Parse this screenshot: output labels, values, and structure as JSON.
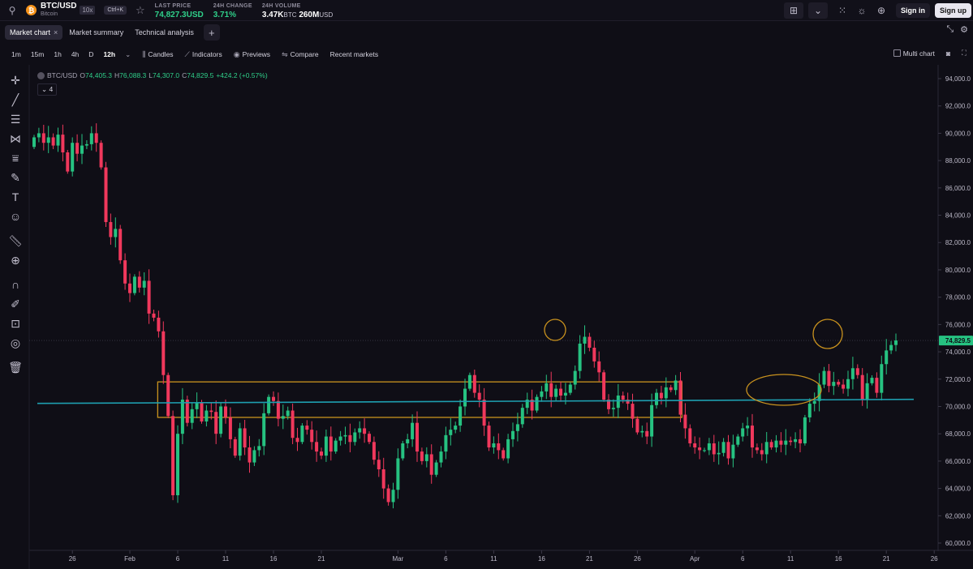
{
  "header": {
    "pair": "BTC/USD",
    "pair_sub": "Bitcoin",
    "leverage": "10x",
    "shortcut": "Ctrl+K",
    "last_price_label": "LAST PRICE",
    "last_price": "74,827.3USD",
    "change_label": "24H CHANGE",
    "change": "3.71%",
    "volume_label": "24H VOLUME",
    "volume_btc": "3.47K",
    "volume_btc_unit": "BTC",
    "volume_usd": "260M",
    "volume_usd_unit": "USD",
    "sign_in": "Sign in",
    "sign_up": "Sign up"
  },
  "tabs": {
    "market_chart": "Market chart",
    "close": "×",
    "market_summary": "Market summary",
    "technical_analysis": "Technical analysis",
    "add": "+"
  },
  "toolbar": {
    "timeframes": [
      "1m",
      "15m",
      "1h",
      "4h",
      "D",
      "12h"
    ],
    "active_timeframe": "12h",
    "candles": "Candles",
    "indicators": "Indicators",
    "previews": "Previews",
    "compare": "Compare",
    "recent_markets": "Recent markets",
    "multi_chart": "Multi chart"
  },
  "legend": {
    "symbol": "BTC/USD",
    "o_label": "O",
    "o": "74,405.3",
    "h_label": "H",
    "h": "76,088.3",
    "l_label": "L",
    "l": "74,307.0",
    "c_label": "C",
    "c": "74,829.5",
    "change": "+424.2 (+0.57%)",
    "indicator_count": "4"
  },
  "colors": {
    "up": "#26c281",
    "down": "#f0385c",
    "support_line": "#1e9fb0",
    "annotation": "#c9921e",
    "price_tag": "#26c281"
  },
  "chart_data": {
    "type": "candlestick",
    "ylim": [
      59500,
      95000
    ],
    "y_ticks": [
      60000,
      62000,
      64000,
      66000,
      68000,
      70000,
      72000,
      74000,
      76000,
      78000,
      80000,
      82000,
      84000,
      86000,
      88000,
      90000,
      92000,
      94000
    ],
    "y_tick_labels": [
      "60,000.0",
      "62,000.0",
      "64,000.0",
      "66,000.0",
      "68,000.0",
      "70,000.0",
      "72,000.0",
      "74,000.0",
      "76,000.0",
      "78,000.0",
      "80,000.0",
      "82,000.0",
      "84,000.0",
      "86,000.0",
      "88,000.0",
      "90,000.0",
      "92,000.0",
      "94,000.0"
    ],
    "x_ticks": [
      {
        "label": "26",
        "bar": 8
      },
      {
        "label": "Feb",
        "bar": 20
      },
      {
        "label": "6",
        "bar": 30
      },
      {
        "label": "11",
        "bar": 40
      },
      {
        "label": "16",
        "bar": 50
      },
      {
        "label": "21",
        "bar": 60
      },
      {
        "label": "Mar",
        "bar": 76
      },
      {
        "label": "6",
        "bar": 86
      },
      {
        "label": "11",
        "bar": 96
      },
      {
        "label": "16",
        "bar": 106
      },
      {
        "label": "21",
        "bar": 116
      },
      {
        "label": "26",
        "bar": 126
      },
      {
        "label": "Apr",
        "bar": 138
      },
      {
        "label": "6",
        "bar": 148
      },
      {
        "label": "11",
        "bar": 158
      },
      {
        "label": "16",
        "bar": 168
      },
      {
        "label": "21",
        "bar": 178
      },
      {
        "label": "26",
        "bar": 188
      }
    ],
    "closes": [
      89700,
      90000,
      89300,
      89700,
      89100,
      89900,
      88600,
      87200,
      89300,
      88500,
      89100,
      89200,
      90000,
      89300,
      87500,
      83500,
      82400,
      83000,
      80700,
      79000,
      78300,
      79500,
      78700,
      79200,
      76800,
      76500,
      75500,
      72300,
      69300,
      63500,
      68000,
      70500,
      68800,
      69800,
      70300,
      68900,
      69700,
      69600,
      68000,
      70000,
      69200,
      67600,
      66400,
      68400,
      67000,
      65900,
      66800,
      67100,
      69500,
      70700,
      70400,
      69100,
      69300,
      69700,
      67700,
      67400,
      68600,
      68300,
      67400,
      66700,
      66400,
      67800,
      66700,
      67500,
      67800,
      67900,
      67400,
      68100,
      68400,
      68000,
      67400,
      66100,
      65400,
      64000,
      63000,
      63900,
      66200,
      67300,
      67600,
      68800,
      66700,
      66000,
      66500,
      65000,
      65900,
      66700,
      67900,
      68300,
      68600,
      70000,
      71300,
      72300,
      71000,
      70500,
      68600,
      67000,
      67300,
      66800,
      66200,
      67600,
      68200,
      68700,
      69900,
      70500,
      69700,
      70700,
      71100,
      71700,
      70700,
      71300,
      70800,
      71000,
      71600,
      72600,
      74600,
      75100,
      74300,
      73300,
      72500,
      70500,
      69800,
      69900,
      70800,
      70500,
      70200,
      69100,
      68100,
      68200,
      67800,
      70100,
      71000,
      70600,
      71400,
      71200,
      71900,
      69400,
      68400,
      67300,
      67000,
      66800,
      66800,
      67300,
      66500,
      66600,
      67400,
      66200,
      67200,
      67800,
      68400,
      68600,
      67000,
      66800,
      66500,
      67400,
      67000,
      67500,
      67200,
      67500,
      67400,
      67600,
      67300,
      69200,
      70200,
      70400,
      71600,
      72600,
      71500,
      71800,
      71600,
      71300,
      72000,
      72800,
      72300,
      70500,
      71700,
      72100,
      71000,
      73100,
      74100,
      74500,
      74830
    ],
    "last_price_label": "74,829.5",
    "support_price": 70400,
    "range_box": {
      "bar_from": 28,
      "bar_to": 180,
      "price_high": 71800,
      "price_low": 69200,
      "start_label": "Feb 4",
      "end_label": "Mar 29"
    }
  }
}
